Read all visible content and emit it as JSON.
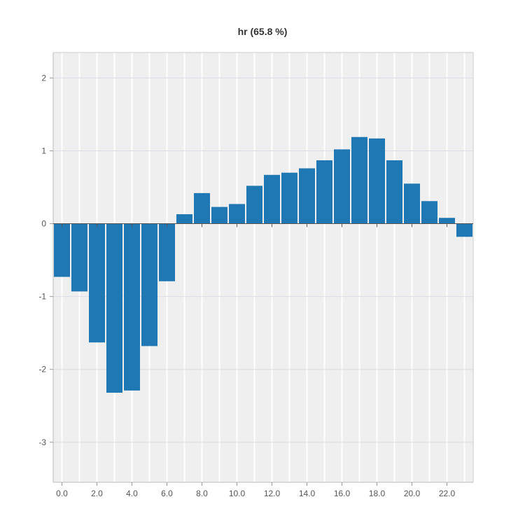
{
  "chart_data": {
    "type": "bar",
    "title": "hr (65.8 %)",
    "xlabel": "",
    "ylabel": "",
    "x": [
      0,
      1,
      2,
      3,
      4,
      5,
      6,
      7,
      8,
      9,
      10,
      11,
      12,
      13,
      14,
      15,
      16,
      17,
      18,
      19,
      20,
      21,
      22,
      23
    ],
    "values": [
      -0.73,
      -0.93,
      -1.63,
      -2.32,
      -2.29,
      -1.68,
      -0.79,
      0.13,
      0.42,
      0.23,
      0.27,
      0.52,
      0.67,
      0.7,
      0.76,
      0.87,
      1.02,
      1.19,
      1.17,
      0.87,
      0.55,
      0.31,
      0.08,
      -0.18
    ],
    "xlim": [
      -0.5,
      23.5
    ],
    "ylim": [
      -3.55,
      2.35
    ],
    "x_ticks": [
      0,
      2,
      4,
      6,
      8,
      10,
      12,
      14,
      16,
      18,
      20,
      22
    ],
    "x_tick_labels": [
      "0.0",
      "2.0",
      "4.0",
      "6.0",
      "8.0",
      "10.0",
      "12.0",
      "14.0",
      "16.0",
      "18.0",
      "20.0",
      "22.0"
    ],
    "y_ticks": [
      -3,
      -2,
      -1,
      0,
      1,
      2
    ],
    "y_tick_labels": [
      "-3",
      "-2",
      "-1",
      "0",
      "1",
      "2"
    ],
    "bar_color": "#1f77b4",
    "background_color": "#efefef",
    "grid": true
  }
}
